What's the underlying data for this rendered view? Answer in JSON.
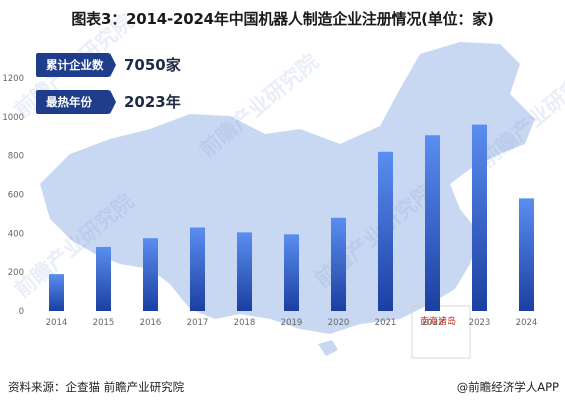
{
  "title": "图表3：2014-2024年中国机器人制造企业注册情况(单位：家)",
  "badges": [
    {
      "label": "累计企业数",
      "value": "7050家"
    },
    {
      "label": "最热年份",
      "value": "2023年"
    }
  ],
  "islands_label": "南海诸岛",
  "watermark": "前瞻产业研究院",
  "footer": {
    "source": "资料来源：企查猫 前瞻产业研究院",
    "brand": "@前瞻经济学人APP"
  },
  "colors": {
    "bar_top": "#5a8ef0",
    "bar_bottom": "#1b3fa0",
    "map_fill": "#b7cbee",
    "axis_text": "#666666"
  },
  "chart_data": {
    "type": "bar",
    "categories": [
      "2014",
      "2015",
      "2016",
      "2017",
      "2018",
      "2019",
      "2020",
      "2021",
      "2022",
      "2023",
      "2024"
    ],
    "values": [
      190,
      330,
      375,
      430,
      405,
      395,
      480,
      820,
      905,
      960,
      580
    ],
    "yticks": [
      0,
      200,
      400,
      600,
      800,
      1000,
      1200
    ],
    "ylim": [
      0,
      1200
    ],
    "grid": false,
    "title": "图表3：2014-2024年中国机器人制造企业注册情况(单位：家)"
  }
}
